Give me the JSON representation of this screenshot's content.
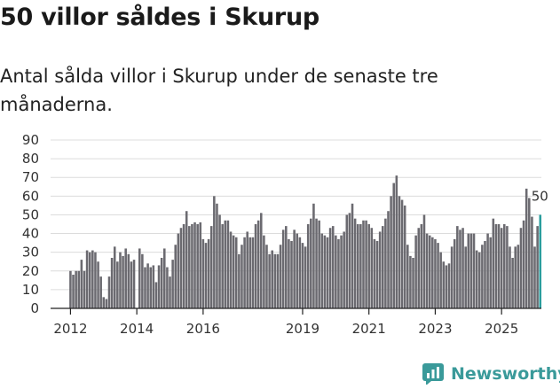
{
  "header": {
    "title": "50 villor såldes i Skurup",
    "subtitle": "Antal sålda villor i Skurup under de senaste tre månaderna."
  },
  "branding": {
    "name": "Newsworthy",
    "color": "#3a9a9a"
  },
  "colors": {
    "bar": "#6b6a70",
    "highlight": "#2a9d9d",
    "grid": "#dcdcdc",
    "axis": "#222222"
  },
  "chart_data": {
    "type": "bar",
    "title": "50 villor såldes i Skurup",
    "subtitle": "Antal sålda villor i Skurup under de senaste tre månaderna.",
    "xlabel": "",
    "ylabel": "",
    "ylim": [
      0,
      90
    ],
    "yticks": [
      0,
      10,
      20,
      30,
      40,
      50,
      60,
      70,
      80,
      90
    ],
    "xlim": [
      2011.4,
      2026.2
    ],
    "xticks": [
      {
        "label": "2012",
        "x": 2012.0
      },
      {
        "label": "2014",
        "x": 2014.0
      },
      {
        "label": "2016",
        "x": 2016.0
      },
      {
        "label": "2019",
        "x": 2019.0
      },
      {
        "label": "2021",
        "x": 2021.0
      },
      {
        "label": "2023",
        "x": 2023.0
      },
      {
        "label": "2025",
        "x": 2025.0
      }
    ],
    "grid": true,
    "start": 2012.0,
    "step_months": 1,
    "annotation": {
      "text": "50",
      "value": 50
    },
    "values": [
      20,
      18,
      20,
      20,
      26,
      20,
      31,
      30,
      31,
      30,
      25,
      17,
      6,
      5,
      17,
      27,
      33,
      25,
      30,
      28,
      32,
      29,
      25,
      26,
      0,
      32,
      29,
      22,
      24,
      22,
      23,
      14,
      23,
      27,
      32,
      22,
      17,
      26,
      34,
      40,
      43,
      45,
      52,
      44,
      45,
      46,
      45,
      46,
      37,
      35,
      37,
      44,
      60,
      56,
      50,
      45,
      47,
      47,
      41,
      39,
      38,
      29,
      34,
      38,
      41,
      38,
      38,
      45,
      47,
      51,
      39,
      34,
      29,
      31,
      29,
      29,
      34,
      42,
      44,
      37,
      36,
      42,
      40,
      38,
      35,
      33,
      45,
      48,
      56,
      48,
      47,
      40,
      39,
      38,
      43,
      44,
      39,
      37,
      39,
      41,
      50,
      51,
      56,
      48,
      45,
      45,
      47,
      47,
      45,
      43,
      37,
      36,
      41,
      44,
      48,
      52,
      60,
      67,
      71,
      60,
      58,
      55,
      34,
      28,
      27,
      39,
      43,
      45,
      50,
      40,
      39,
      38,
      37,
      35,
      30,
      25,
      23,
      24,
      33,
      37,
      44,
      42,
      43,
      33,
      40,
      40,
      40,
      31,
      30,
      34,
      36,
      40,
      38,
      48,
      45,
      45,
      43,
      45,
      44,
      33,
      27,
      33,
      34,
      43,
      47,
      64,
      59,
      49,
      33,
      44,
      50
    ]
  }
}
